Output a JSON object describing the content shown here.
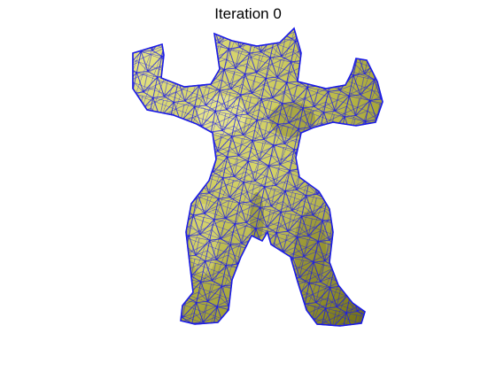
{
  "figure": {
    "title": "Iteration 0"
  },
  "mesh": {
    "subject": "armadillo",
    "colors": {
      "surface": "#b5b43a",
      "surface_shadow": "#6f6d14",
      "surface_highlight": "#ecea8f",
      "edges": "#1b1be6",
      "background": "#ffffff"
    }
  }
}
